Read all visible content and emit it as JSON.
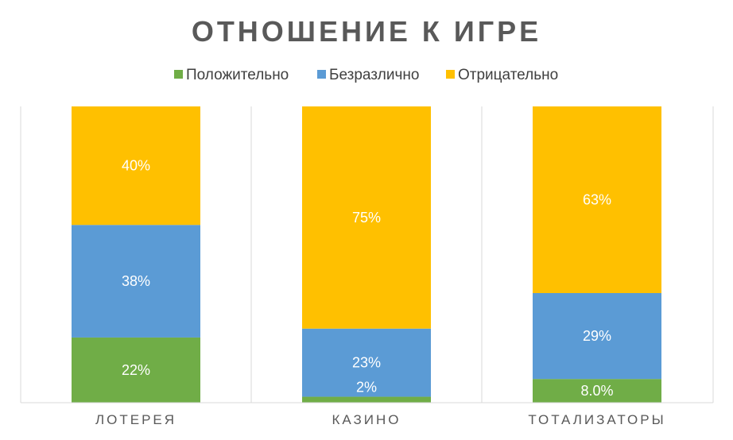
{
  "chart_data": {
    "type": "bar",
    "stacked": true,
    "percent_stacked": true,
    "title": "ОТНОШЕНИЕ К ИГРЕ",
    "categories": [
      "ЛОТЕРЕЯ",
      "КАЗИНО",
      "ТОТАЛИЗАТОРЫ"
    ],
    "series": [
      {
        "name": "Положительно",
        "values": [
          22,
          2,
          8.0
        ],
        "labels": [
          "22%",
          "2%",
          "8.0%"
        ],
        "color": "#70AD47"
      },
      {
        "name": "Безразлично",
        "values": [
          38,
          23,
          29
        ],
        "labels": [
          "38%",
          "23%",
          "29%"
        ],
        "color": "#5B9BD5"
      },
      {
        "name": "Отрицательно",
        "values": [
          40,
          75,
          63
        ],
        "labels": [
          "40%",
          "75%",
          "63%"
        ],
        "color": "#FFC000"
      }
    ],
    "ylim": [
      0,
      100
    ],
    "legend_position": "top",
    "grid": "vertical separators between categories"
  }
}
